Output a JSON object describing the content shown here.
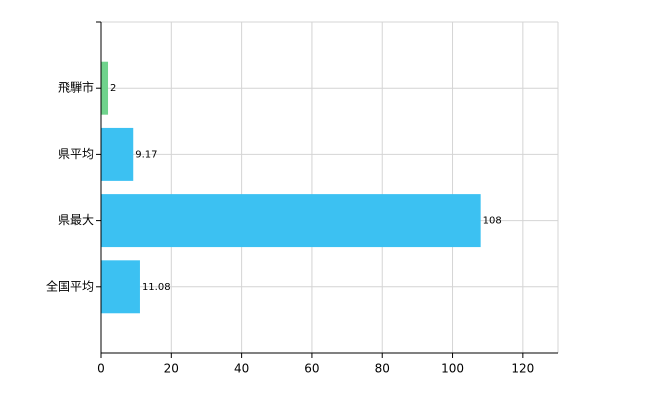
{
  "chart_data": {
    "type": "barh",
    "categories": [
      "飛騨市",
      "県平均",
      "県最大",
      "全国平均"
    ],
    "values": [
      2,
      9.17,
      108,
      11.08
    ],
    "colors": [
      "#6fd38c",
      "#3cc1f2",
      "#3cc1f2",
      "#3cc1f2"
    ],
    "xlim": [
      0,
      130
    ],
    "xticks": [
      0,
      20,
      40,
      60,
      80,
      100,
      120
    ],
    "grid": true
  }
}
